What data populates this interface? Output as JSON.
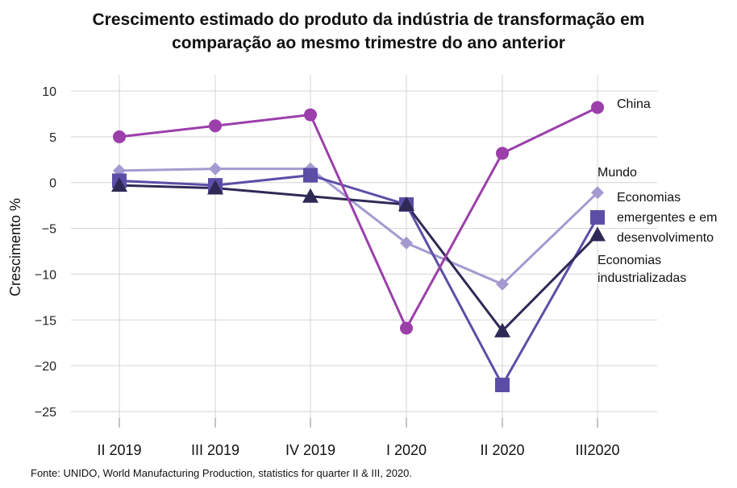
{
  "chart_data": {
    "type": "line",
    "title_lines": [
      "Crescimento estimado do produto da indústria de transformação em",
      "comparação ao mesmo trimestre do ano anterior"
    ],
    "ylabel": "Crescimento %",
    "xlabel": "",
    "categories": [
      "II 2019",
      "III 2019",
      "IV 2019",
      "I 2020",
      "II 2020",
      "III2020"
    ],
    "ylim": [
      -25,
      10
    ],
    "yticks": [
      10,
      5,
      0,
      -5,
      -10,
      -15,
      -20,
      -25
    ],
    "ytick_labels": [
      "10",
      "5",
      "0",
      "−5",
      "−10",
      "−15",
      "−20",
      "−25"
    ],
    "grid": true,
    "series": [
      {
        "name": "China",
        "marker": "circle",
        "color": "#9b3faa",
        "values": [
          5.0,
          6.2,
          7.4,
          -15.9,
          3.2,
          8.2
        ]
      },
      {
        "name": "Mundo",
        "marker": "diamond",
        "color": "#a59ad0",
        "values": [
          1.3,
          1.5,
          1.5,
          -6.6,
          -11.1,
          -1.1
        ]
      },
      {
        "name": "Economias emergentes e em desenvolvimento",
        "marker": "square",
        "color": "#5c4ea6",
        "values": [
          0.2,
          -0.3,
          0.8,
          -2.4,
          -22.1,
          -3.8
        ]
      },
      {
        "name": "Economias industrializadas",
        "marker": "triangle",
        "color": "#2e2a55",
        "values": [
          -0.3,
          -0.6,
          -1.5,
          -2.4,
          -16.2,
          -5.7
        ]
      }
    ],
    "legend_lines": {
      "China": [
        "China"
      ],
      "Mundo": [
        "Mundo"
      ],
      "Economias emergentes e em desenvolvimento": [
        "Economias",
        "emergentes e em",
        "desenvolvimento"
      ],
      "Economias industrializadas": [
        "Economias",
        "industrializadas"
      ]
    },
    "source": "Fonte: UNIDO, World Manufacturing Production, statistics for quarter II & III, 2020."
  }
}
